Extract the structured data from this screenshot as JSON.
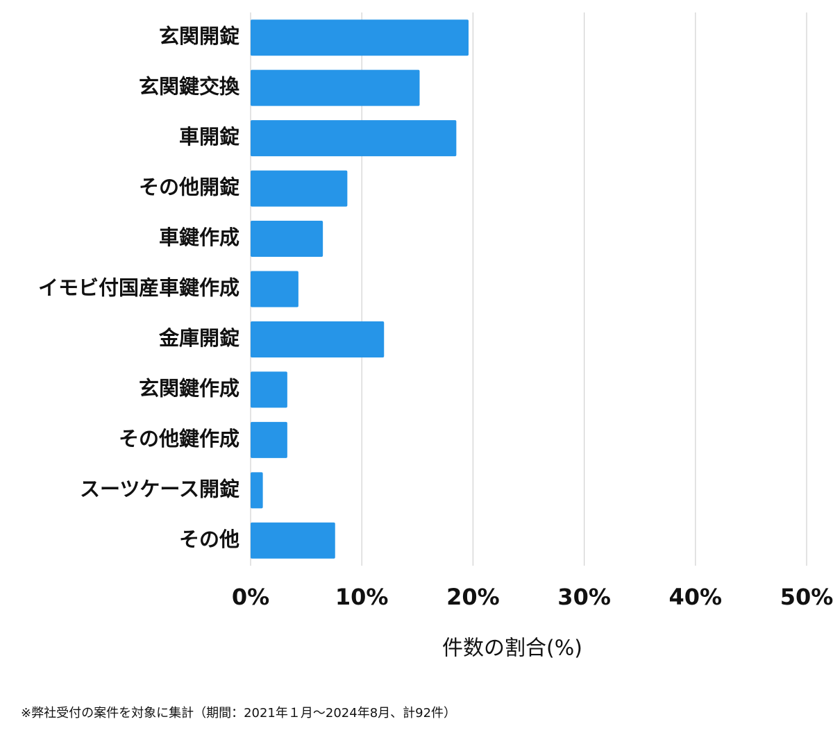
{
  "chart_data": {
    "type": "hbar",
    "categories": [
      "玄関開錠",
      "玄関鍵交換",
      "車開錠",
      "その他開錠",
      "車鍵作成",
      "イモビ付国産車鍵作成",
      "金庫開錠",
      "玄関鍵作成",
      "その他鍵作成",
      "スーツケース開錠",
      "その他"
    ],
    "values": [
      19.6,
      15.2,
      18.5,
      8.7,
      6.5,
      4.3,
      12.0,
      3.3,
      3.3,
      1.1,
      7.6
    ],
    "color": "#2695e8",
    "xlim": [
      0,
      50
    ],
    "xticks": [
      {
        "value": 0,
        "label": "0%"
      },
      {
        "value": 10,
        "label": "10%"
      },
      {
        "value": 20,
        "label": "20%"
      },
      {
        "value": 30,
        "label": "30%"
      },
      {
        "value": 40,
        "label": "40%"
      },
      {
        "value": 50,
        "label": "50%"
      }
    ],
    "xlabel": "件数の割合(%)",
    "grid": true,
    "note": "※弊社受付の案件を対象に集計（期間：2021年１月～2024年8月、計92件）"
  }
}
